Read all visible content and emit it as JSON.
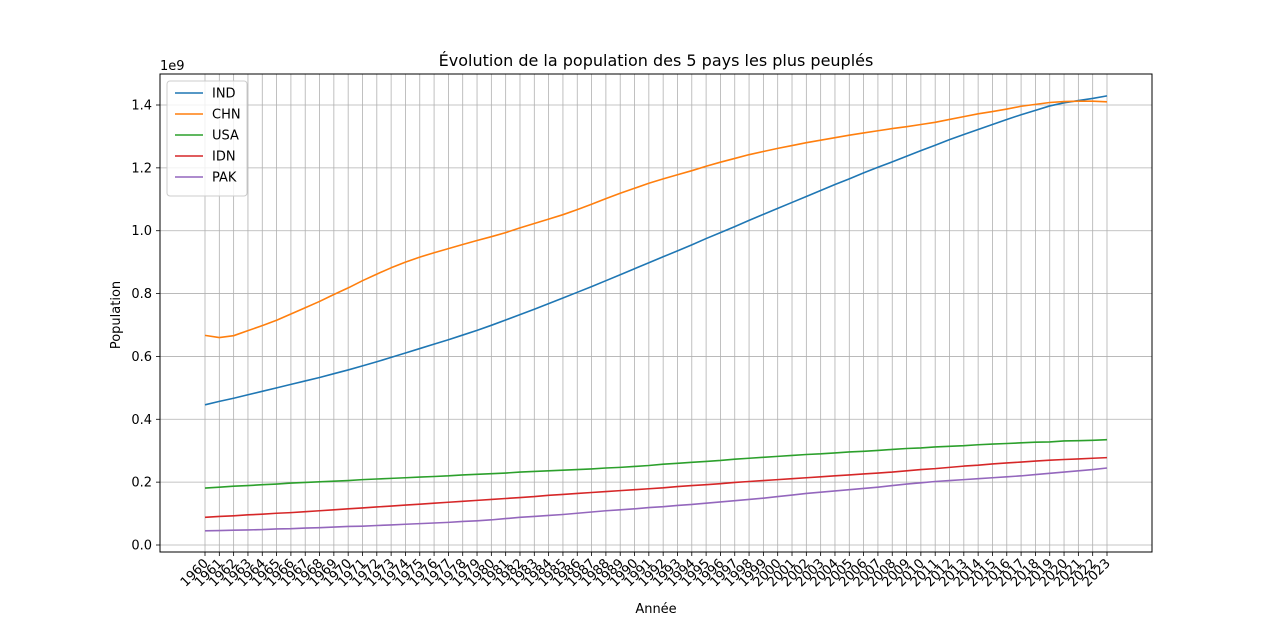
{
  "chart_data": {
    "type": "line",
    "title": "Évolution de la population des 5 pays les plus peuplés",
    "xlabel": "Année",
    "ylabel": "Population",
    "y_offset_label": "1e9",
    "x": [
      1960,
      1961,
      1962,
      1963,
      1964,
      1965,
      1966,
      1967,
      1968,
      1969,
      1970,
      1971,
      1972,
      1973,
      1974,
      1975,
      1976,
      1977,
      1978,
      1979,
      1980,
      1981,
      1982,
      1983,
      1984,
      1985,
      1986,
      1987,
      1988,
      1989,
      1990,
      1991,
      1992,
      1993,
      1994,
      1995,
      1996,
      1997,
      1998,
      1999,
      2000,
      2001,
      2002,
      2003,
      2004,
      2005,
      2006,
      2007,
      2008,
      2009,
      2010,
      2011,
      2012,
      2013,
      2014,
      2015,
      2016,
      2017,
      2018,
      2019,
      2020,
      2021,
      2022,
      2023
    ],
    "yticks": [
      "0.0",
      "0.2",
      "0.4",
      "0.6",
      "0.8",
      "1.0",
      "1.2",
      "1.4"
    ],
    "ylim": [
      0,
      1.5
    ],
    "grid": true,
    "legend_position": "top-left",
    "series": [
      {
        "name": "IND",
        "color": "#1f77b4",
        "values": [
          0.446,
          0.457,
          0.467,
          0.478,
          0.489,
          0.5,
          0.511,
          0.522,
          0.533,
          0.545,
          0.557,
          0.57,
          0.583,
          0.597,
          0.611,
          0.625,
          0.639,
          0.653,
          0.668,
          0.683,
          0.699,
          0.716,
          0.733,
          0.75,
          0.768,
          0.786,
          0.804,
          0.822,
          0.841,
          0.86,
          0.879,
          0.898,
          0.917,
          0.936,
          0.955,
          0.975,
          0.994,
          1.013,
          1.033,
          1.052,
          1.071,
          1.09,
          1.109,
          1.128,
          1.147,
          1.165,
          1.184,
          1.202,
          1.219,
          1.237,
          1.255,
          1.272,
          1.29,
          1.306,
          1.322,
          1.338,
          1.354,
          1.369,
          1.383,
          1.397,
          1.407,
          1.414,
          1.421,
          1.429
        ]
      },
      {
        "name": "CHN",
        "color": "#ff7f0e",
        "values": [
          0.667,
          0.66,
          0.666,
          0.682,
          0.698,
          0.715,
          0.735,
          0.755,
          0.775,
          0.797,
          0.818,
          0.841,
          0.862,
          0.882,
          0.9,
          0.916,
          0.93,
          0.943,
          0.956,
          0.969,
          0.981,
          0.994,
          1.009,
          1.023,
          1.037,
          1.051,
          1.067,
          1.084,
          1.102,
          1.119,
          1.135,
          1.151,
          1.165,
          1.178,
          1.191,
          1.205,
          1.218,
          1.23,
          1.242,
          1.252,
          1.262,
          1.271,
          1.28,
          1.288,
          1.296,
          1.304,
          1.311,
          1.318,
          1.325,
          1.331,
          1.338,
          1.345,
          1.354,
          1.363,
          1.372,
          1.379,
          1.387,
          1.396,
          1.402,
          1.408,
          1.411,
          1.412,
          1.412,
          1.41
        ]
      },
      {
        "name": "USA",
        "color": "#2ca02c",
        "values": [
          0.181,
          0.184,
          0.187,
          0.189,
          0.192,
          0.194,
          0.197,
          0.199,
          0.201,
          0.203,
          0.205,
          0.208,
          0.21,
          0.212,
          0.214,
          0.216,
          0.218,
          0.22,
          0.223,
          0.225,
          0.227,
          0.229,
          0.232,
          0.234,
          0.236,
          0.238,
          0.24,
          0.242,
          0.245,
          0.247,
          0.25,
          0.253,
          0.257,
          0.26,
          0.263,
          0.266,
          0.269,
          0.273,
          0.276,
          0.279,
          0.282,
          0.285,
          0.288,
          0.29,
          0.293,
          0.296,
          0.298,
          0.301,
          0.304,
          0.307,
          0.309,
          0.312,
          0.314,
          0.316,
          0.319,
          0.321,
          0.323,
          0.325,
          0.327,
          0.328,
          0.331,
          0.332,
          0.333,
          0.335
        ]
      },
      {
        "name": "IDN",
        "color": "#d62728",
        "values": [
          0.088,
          0.091,
          0.093,
          0.096,
          0.098,
          0.101,
          0.103,
          0.106,
          0.109,
          0.112,
          0.115,
          0.118,
          0.121,
          0.124,
          0.127,
          0.13,
          0.133,
          0.136,
          0.139,
          0.142,
          0.145,
          0.148,
          0.151,
          0.154,
          0.158,
          0.161,
          0.164,
          0.167,
          0.17,
          0.173,
          0.176,
          0.179,
          0.182,
          0.186,
          0.189,
          0.192,
          0.195,
          0.199,
          0.202,
          0.205,
          0.208,
          0.211,
          0.214,
          0.217,
          0.22,
          0.223,
          0.226,
          0.229,
          0.232,
          0.236,
          0.24,
          0.243,
          0.247,
          0.251,
          0.254,
          0.258,
          0.261,
          0.264,
          0.267,
          0.27,
          0.272,
          0.274,
          0.276,
          0.278
        ]
      },
      {
        "name": "PAK",
        "color": "#9467bd",
        "values": [
          0.045,
          0.046,
          0.047,
          0.048,
          0.049,
          0.051,
          0.052,
          0.054,
          0.055,
          0.057,
          0.059,
          0.06,
          0.062,
          0.064,
          0.066,
          0.068,
          0.07,
          0.072,
          0.075,
          0.077,
          0.08,
          0.084,
          0.088,
          0.091,
          0.094,
          0.097,
          0.101,
          0.105,
          0.109,
          0.112,
          0.115,
          0.119,
          0.122,
          0.126,
          0.129,
          0.133,
          0.137,
          0.141,
          0.145,
          0.149,
          0.154,
          0.159,
          0.164,
          0.168,
          0.172,
          0.176,
          0.18,
          0.184,
          0.189,
          0.194,
          0.198,
          0.202,
          0.205,
          0.208,
          0.211,
          0.214,
          0.217,
          0.22,
          0.224,
          0.228,
          0.232,
          0.236,
          0.24,
          0.245
        ]
      }
    ]
  }
}
